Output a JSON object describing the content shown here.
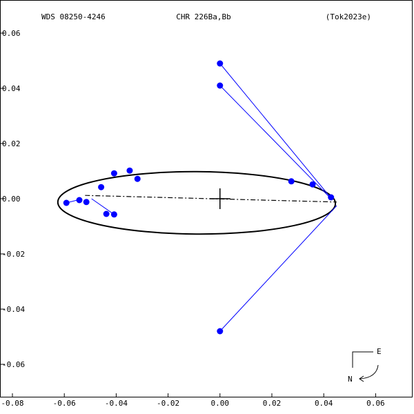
{
  "header": {
    "left": "WDS 08250-4246",
    "center": "CHR 226Ba,Bb",
    "right": "(Tok2023e)"
  },
  "compass": {
    "east": "E",
    "north": "N"
  },
  "colors": {
    "points": "#0000ff",
    "residuals": "#0000ff",
    "orbit": "#000000"
  },
  "chart_data": {
    "type": "scatter",
    "xlim": [
      -0.08,
      0.07
    ],
    "ylim": [
      -0.072,
      0.072
    ],
    "x_ticks": [
      -0.08,
      -0.06,
      -0.04,
      -0.02,
      0.0,
      0.02,
      0.04,
      0.06
    ],
    "x_tick_labels": [
      "-0.08",
      "-0.06",
      "-0.04",
      "-0.02",
      "0.00",
      "0.02",
      "0.04",
      "0.06"
    ],
    "y_ticks": [
      0.06,
      0.04,
      0.02,
      0.0,
      -0.02,
      -0.04,
      -0.06
    ],
    "y_tick_labels": [
      "0.06",
      "0.04",
      "0.02",
      "0.00",
      "-0.02",
      "-0.04",
      "-0.06"
    ],
    "grid": false,
    "primary": [
      0.0,
      0.0
    ],
    "orbit_ellipse": {
      "center": [
        -0.009,
        -0.0015
      ],
      "semi_x": 0.0535,
      "semi_y": 0.0113,
      "rotation_deg": 0.3
    },
    "line_of_nodes": [
      [
        -0.052,
        0.0012
      ],
      [
        0.045,
        -0.0012
      ]
    ],
    "observations": [
      {
        "x": 0.0,
        "y": 0.049,
        "fx": 0.043,
        "fy": 0.0
      },
      {
        "x": 0.0,
        "y": 0.041,
        "fx": 0.043,
        "fy": -0.0002
      },
      {
        "x": 0.0,
        "y": -0.048,
        "fx": 0.045,
        "fy": -0.0025
      },
      {
        "x": 0.0275,
        "y": 0.0063,
        "fx": 0.028,
        "fy": 0.0065
      },
      {
        "x": 0.0357,
        "y": 0.0052,
        "fx": 0.036,
        "fy": 0.0054
      },
      {
        "x": 0.0428,
        "y": 0.0005,
        "fx": 0.0428,
        "fy": 0.0005
      },
      {
        "x": -0.0592,
        "y": -0.0015,
        "fx": -0.055,
        "fy": -0.0005
      },
      {
        "x": -0.0542,
        "y": -0.0005,
        "fx": -0.0535,
        "fy": -0.0008
      },
      {
        "x": -0.0515,
        "y": -0.0012,
        "fx": -0.0525,
        "fy": -0.0012
      },
      {
        "x": -0.0458,
        "y": 0.0042,
        "fx": -0.046,
        "fy": 0.0035
      },
      {
        "x": -0.0438,
        "y": -0.0055,
        "fx": -0.0432,
        "fy": -0.0055
      },
      {
        "x": -0.0408,
        "y": -0.0057,
        "fx": -0.0495,
        "fy": 0.0
      },
      {
        "x": -0.0408,
        "y": 0.0092,
        "fx": -0.0405,
        "fy": 0.0085
      },
      {
        "x": -0.0348,
        "y": 0.0102,
        "fx": -0.0345,
        "fy": 0.0095
      },
      {
        "x": -0.0318,
        "y": 0.0072,
        "fx": -0.0315,
        "fy": 0.0068
      }
    ]
  }
}
